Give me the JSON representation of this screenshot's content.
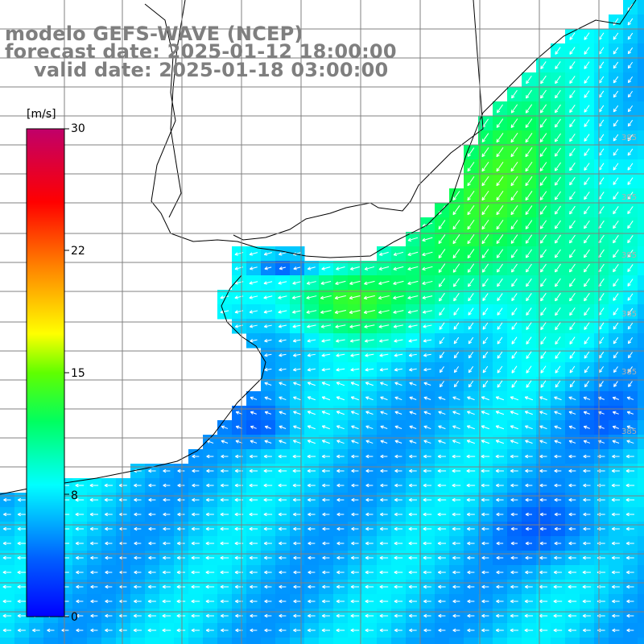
{
  "title": {
    "model": "modelo GEFS-WAVE (NCEP)",
    "forecast": "forecast date: 2025-01-12 18:00:00",
    "valid": "valid date: 2025-01-18 03:00:00"
  },
  "colorbar": {
    "unit": "[m/s]",
    "ticks": [
      "30",
      "22",
      "15",
      "8",
      "0"
    ],
    "tick_values": [
      30,
      22,
      15,
      8,
      0
    ],
    "range": [
      0,
      30
    ],
    "colors": [
      "#0000ff",
      "#00a0ff",
      "#00ffff",
      "#00ff00",
      "#ffff00",
      "#ff8000",
      "#ff0000",
      "#c0006a"
    ]
  },
  "map": {
    "land_color": "#ffffff",
    "grid_color": "#808080",
    "coast_color": "#000000",
    "arrow_color": "#ffffff",
    "ocean_label": "385"
  }
}
